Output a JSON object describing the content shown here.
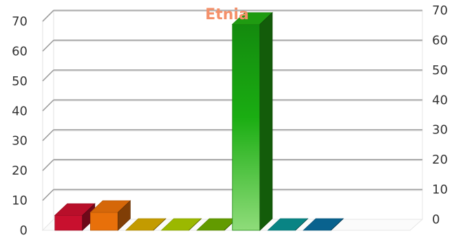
{
  "chart_data": {
    "type": "bar",
    "title": "Etnia",
    "xlabel": "",
    "ylabel": "",
    "ylim": [
      0,
      70
    ],
    "yticks": [
      0,
      10,
      20,
      30,
      40,
      50,
      60,
      70
    ],
    "grid": true,
    "legend": "none",
    "style": "3d",
    "values": [
      5,
      6,
      0,
      0,
      0,
      69,
      0,
      0
    ],
    "colors": [
      "#c8102e",
      "#e8700a",
      "#d4a800",
      "#a8c800",
      "#6aa800",
      "#22a812",
      "#0a9090",
      "#0a6a9a"
    ]
  }
}
